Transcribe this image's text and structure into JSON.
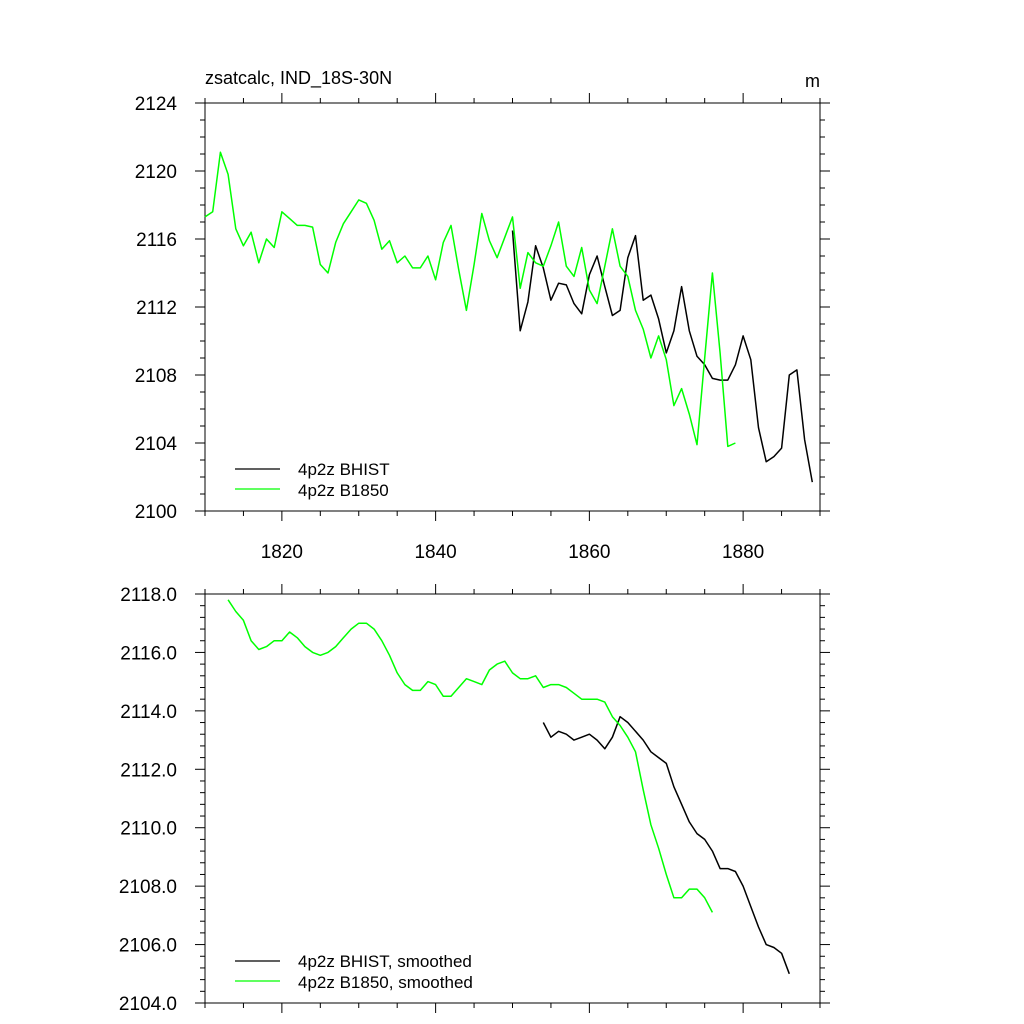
{
  "chart_data": [
    {
      "type": "line",
      "title": "zsatcalc, IND_18S-30N",
      "units": "m",
      "xlabel": "",
      "ylabel": "",
      "xlim": [
        1810,
        1890
      ],
      "ylim": [
        2100,
        2124
      ],
      "xticks": [
        1820,
        1840,
        1860,
        1880
      ],
      "yticks": [
        2100,
        2104,
        2108,
        2112,
        2116,
        2120,
        2124
      ],
      "ytick_labels": [
        "2100",
        "2104",
        "2108",
        "2112",
        "2116",
        "2120",
        "2124"
      ],
      "legend_position": "bottom-left",
      "series": [
        {
          "name": "4p2z BHIST",
          "color": "#000000",
          "x": [
            1850,
            1851,
            1852,
            1853,
            1854,
            1855,
            1856,
            1857,
            1858,
            1859,
            1860,
            1861,
            1862,
            1863,
            1864,
            1865,
            1866,
            1867,
            1868,
            1869,
            1870,
            1871,
            1872,
            1873,
            1874,
            1875,
            1876,
            1877,
            1878,
            1879,
            1880,
            1881,
            1882,
            1883,
            1884,
            1885,
            1886,
            1887,
            1888,
            1889
          ],
          "values": [
            2116.5,
            2110.6,
            2112.3,
            2115.6,
            2114.3,
            2112.4,
            2113.4,
            2113.3,
            2112.2,
            2111.6,
            2113.9,
            2115.0,
            2113.2,
            2111.5,
            2111.8,
            2114.9,
            2116.2,
            2112.4,
            2112.7,
            2111.3,
            2109.3,
            2110.6,
            2113.2,
            2110.6,
            2109.1,
            2108.6,
            2107.8,
            2107.7,
            2107.7,
            2108.6,
            2110.3,
            2108.9,
            2104.9,
            2102.9,
            2103.2,
            2103.7,
            2108.0,
            2108.3,
            2104.2,
            2101.7
          ]
        },
        {
          "name": "4p2z B1850",
          "color": "#00ff00",
          "x": [
            1810,
            1811,
            1812,
            1813,
            1814,
            1815,
            1816,
            1817,
            1818,
            1819,
            1820,
            1821,
            1822,
            1823,
            1824,
            1825,
            1826,
            1827,
            1828,
            1829,
            1830,
            1831,
            1832,
            1833,
            1834,
            1835,
            1836,
            1837,
            1838,
            1839,
            1840,
            1841,
            1842,
            1843,
            1844,
            1845,
            1846,
            1847,
            1848,
            1849,
            1850,
            1851,
            1852,
            1853,
            1854,
            1855,
            1856,
            1857,
            1858,
            1859,
            1860,
            1861,
            1862,
            1863,
            1864,
            1865,
            1866,
            1867,
            1868,
            1869,
            1870,
            1871,
            1872,
            1873,
            1874,
            1875,
            1876,
            1877,
            1878,
            1879
          ],
          "values": [
            2117.3,
            2117.6,
            2121.1,
            2119.8,
            2116.6,
            2115.6,
            2116.4,
            2114.6,
            2116.0,
            2115.5,
            2117.6,
            2117.2,
            2116.8,
            2116.8,
            2116.7,
            2114.5,
            2114.0,
            2115.8,
            2116.9,
            2117.6,
            2118.3,
            2118.1,
            2117.1,
            2115.4,
            2115.9,
            2114.6,
            2115.0,
            2114.3,
            2114.3,
            2115.0,
            2113.6,
            2115.8,
            2116.8,
            2114.2,
            2111.8,
            2114.5,
            2117.5,
            2115.9,
            2114.9,
            2116.1,
            2117.3,
            2113.1,
            2115.2,
            2114.6,
            2114.4,
            2115.6,
            2117.0,
            2114.4,
            2113.8,
            2115.5,
            2113.0,
            2112.2,
            2114.4,
            2116.6,
            2114.4,
            2113.8,
            2111.8,
            2110.7,
            2109.0,
            2110.3,
            2108.9,
            2106.2,
            2107.2,
            2105.7,
            2103.9,
            2109.0,
            2114.0,
            2109.3,
            2103.8,
            2104.0
          ]
        }
      ]
    },
    {
      "type": "line",
      "title": "",
      "xlabel": "",
      "ylabel": "",
      "xlim": [
        1810,
        1890
      ],
      "ylim": [
        2104,
        2118
      ],
      "xticks": [
        1820,
        1840,
        1860,
        1880
      ],
      "yticks": [
        2104,
        2106,
        2108,
        2110,
        2112,
        2114,
        2116,
        2118
      ],
      "ytick_labels": [
        "2104.0",
        "2106.0",
        "2108.0",
        "2110.0",
        "2112.0",
        "2114.0",
        "2116.0",
        "2118.0"
      ],
      "legend_position": "bottom-left",
      "series": [
        {
          "name": "4p2z BHIST, smoothed",
          "color": "#000000",
          "x": [
            1854,
            1855,
            1856,
            1857,
            1858,
            1859,
            1860,
            1861,
            1862,
            1863,
            1864,
            1865,
            1866,
            1867,
            1868,
            1869,
            1870,
            1871,
            1872,
            1873,
            1874,
            1875,
            1876,
            1877,
            1878,
            1879,
            1880,
            1881,
            1882,
            1883,
            1884,
            1885,
            1886
          ],
          "values": [
            2113.6,
            2113.1,
            2113.3,
            2113.2,
            2113.0,
            2113.1,
            2113.2,
            2113.0,
            2112.7,
            2113.1,
            2113.8,
            2113.6,
            2113.3,
            2113.0,
            2112.6,
            2112.4,
            2112.2,
            2111.4,
            2110.8,
            2110.2,
            2109.8,
            2109.6,
            2109.2,
            2108.6,
            2108.6,
            2108.5,
            2108.0,
            2107.3,
            2106.6,
            2106.0,
            2105.9,
            2105.7,
            2105.0
          ]
        },
        {
          "name": "4p2z B1850, smoothed",
          "color": "#00ff00",
          "x": [
            1813,
            1814,
            1815,
            1816,
            1817,
            1818,
            1819,
            1820,
            1821,
            1822,
            1823,
            1824,
            1825,
            1826,
            1827,
            1828,
            1829,
            1830,
            1831,
            1832,
            1833,
            1834,
            1835,
            1836,
            1837,
            1838,
            1839,
            1840,
            1841,
            1842,
            1843,
            1844,
            1845,
            1846,
            1847,
            1848,
            1849,
            1850,
            1851,
            1852,
            1853,
            1854,
            1855,
            1856,
            1857,
            1858,
            1859,
            1860,
            1861,
            1862,
            1863,
            1864,
            1865,
            1866,
            1867,
            1868,
            1869,
            1870,
            1871,
            1872,
            1873,
            1874,
            1875,
            1876
          ],
          "values": [
            2117.8,
            2117.4,
            2117.1,
            2116.4,
            2116.1,
            2116.2,
            2116.4,
            2116.4,
            2116.7,
            2116.5,
            2116.2,
            2116.0,
            2115.9,
            2116.0,
            2116.2,
            2116.5,
            2116.8,
            2117.0,
            2117.0,
            2116.8,
            2116.4,
            2115.9,
            2115.3,
            2114.9,
            2114.7,
            2114.7,
            2115.0,
            2114.9,
            2114.5,
            2114.5,
            2114.8,
            2115.1,
            2115.0,
            2114.9,
            2115.4,
            2115.6,
            2115.7,
            2115.3,
            2115.1,
            2115.1,
            2115.2,
            2114.8,
            2114.9,
            2114.9,
            2114.8,
            2114.6,
            2114.4,
            2114.4,
            2114.4,
            2114.3,
            2113.8,
            2113.5,
            2113.1,
            2112.6,
            2111.3,
            2110.1,
            2109.3,
            2108.4,
            2107.6,
            2107.6,
            2107.9,
            2107.9,
            2107.6,
            2107.1
          ]
        }
      ]
    }
  ]
}
